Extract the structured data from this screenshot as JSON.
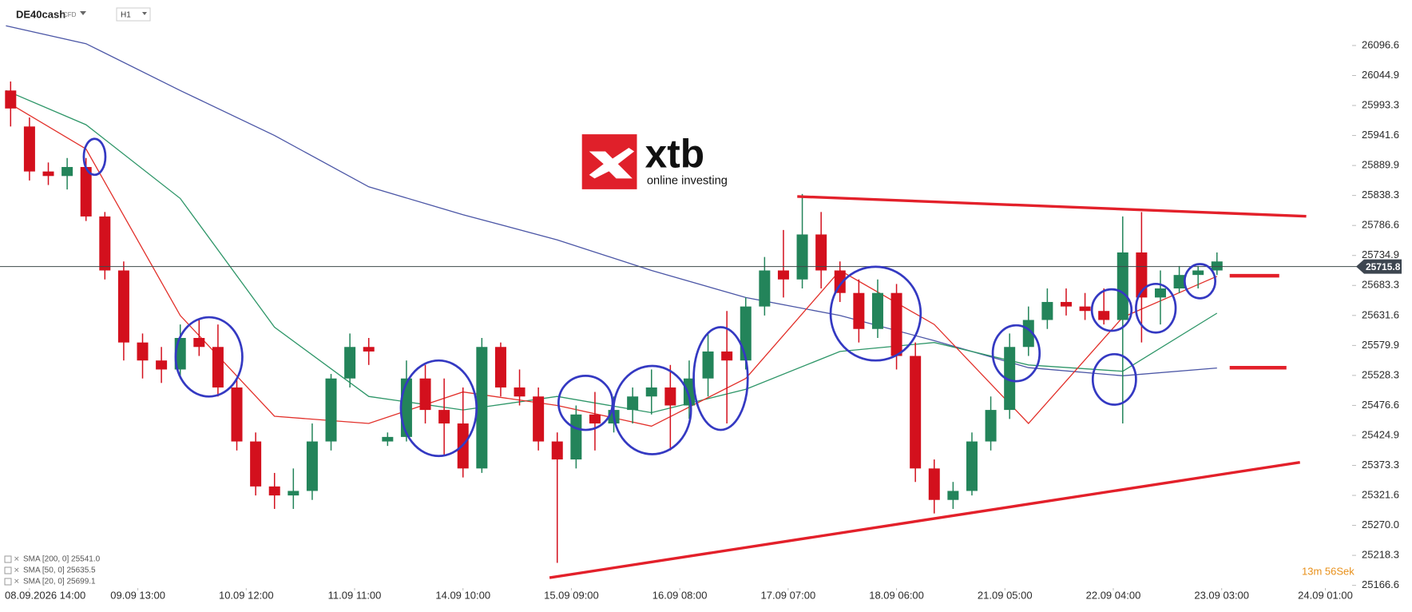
{
  "header": {
    "symbol": "DE40cash",
    "kind": "CFD",
    "timeframe": "H1"
  },
  "watermark": {
    "brand": "xtb",
    "tagline": "online investing"
  },
  "countdown": "13m 56Sek",
  "chart_data": {
    "type": "candlestick",
    "up_color": "#23845a",
    "down_color": "#d3101d",
    "x": [
      4,
      8,
      12,
      16,
      20,
      24,
      28,
      32,
      36,
      40,
      44,
      48,
      52,
      56,
      60,
      64,
      68,
      72,
      76,
      80,
      84,
      88,
      92,
      96,
      100,
      104,
      108,
      112,
      116,
      120,
      124,
      128,
      132,
      136,
      140,
      144,
      148,
      152,
      156,
      160,
      164,
      168,
      172,
      176,
      180,
      184,
      188,
      192,
      196,
      200,
      204,
      208,
      212,
      216,
      220,
      224,
      228,
      232,
      236,
      240,
      244,
      248,
      252,
      256,
      260
    ],
    "open": [
      26019.1,
      25957.1,
      25879.6,
      25871.8,
      25887.3,
      25802.1,
      25709.1,
      25585.0,
      25554.0,
      25538.5,
      25592.8,
      25577.3,
      25507.5,
      25414.5,
      25337.0,
      25321.5,
      25329.3,
      25414.5,
      25523.0,
      25577.3,
      25414.5,
      25422.3,
      25523.0,
      25468.8,
      25445.5,
      25368.0,
      25577.3,
      25507.5,
      25492.0,
      25414.5,
      25383.5,
      25461.0,
      25445.5,
      25468.8,
      25492.0,
      25507.5,
      25476.5,
      25523.0,
      25569.5,
      25554.0,
      25647.0,
      25709.1,
      25693.6,
      25771.1,
      25709.1,
      25670.3,
      25608.3,
      25670.3,
      25561.8,
      25368.0,
      25313.8,
      25329.3,
      25414.5,
      25468.8,
      25577.3,
      25623.8,
      25654.8,
      25647.0,
      25639.3,
      25623.8,
      25740.1,
      25662.5,
      25678.1,
      25701.3,
      25709.1
    ],
    "high": [
      26034.6,
      25972.6,
      25895.1,
      25902.8,
      25902.8,
      25809.8,
      25724.6,
      25600.5,
      25577.3,
      25616.0,
      25623.8,
      25616.0,
      25523.0,
      25430.0,
      25360.3,
      25368.0,
      25445.5,
      25530.8,
      25600.5,
      25592.8,
      25430.0,
      25554.0,
      25546.3,
      25523.0,
      25507.5,
      25592.8,
      25585.0,
      25538.5,
      25507.5,
      25430.0,
      25476.5,
      25499.8,
      25492.0,
      25507.5,
      25538.5,
      25546.3,
      25554.0,
      25600.5,
      25639.3,
      25662.5,
      25732.3,
      25778.8,
      25840.8,
      25809.8,
      25724.6,
      25693.6,
      25693.6,
      25685.8,
      25585.0,
      25383.5,
      25344.8,
      25430.0,
      25492.0,
      25600.5,
      25647.0,
      25678.1,
      25678.1,
      25670.3,
      25678.1,
      25802.1,
      25809.8,
      25709.1,
      25716.8,
      25716.8,
      25740.1
    ],
    "low": [
      25957.1,
      25864.1,
      25856.3,
      25848.6,
      25794.3,
      25693.6,
      25554.0,
      25523.0,
      25515.3,
      25523.0,
      25561.8,
      25492.0,
      25399.0,
      25321.5,
      25298.3,
      25298.3,
      25313.8,
      25399.0,
      25507.5,
      25546.3,
      25406.8,
      25414.5,
      25445.5,
      25391.3,
      25352.5,
      25360.3,
      25492.0,
      25476.5,
      25399.0,
      25205.3,
      25368.0,
      25399.0,
      25430.0,
      25445.5,
      25461.0,
      25399.0,
      25453.3,
      25492.0,
      25445.5,
      25538.5,
      25631.5,
      25662.5,
      25678.1,
      25678.1,
      25654.8,
      25585.0,
      25592.8,
      25538.5,
      25344.8,
      25290.5,
      25298.3,
      25321.5,
      25399.0,
      25453.3,
      25561.8,
      25608.3,
      25631.5,
      25623.8,
      25616.0,
      25445.5,
      25585.0,
      25616.0,
      25670.3,
      25678.1,
      25701.3
    ],
    "close": [
      25988.1,
      25879.6,
      25871.8,
      25887.3,
      25802.1,
      25709.1,
      25585.0,
      25554.0,
      25538.5,
      25592.8,
      25577.3,
      25507.5,
      25414.5,
      25337.0,
      25321.5,
      25329.3,
      25414.5,
      25523.0,
      25577.3,
      25569.5,
      25422.3,
      25523.0,
      25468.8,
      25445.5,
      25368.0,
      25577.3,
      25507.5,
      25492.0,
      25414.5,
      25383.5,
      25461.0,
      25445.5,
      25468.8,
      25492.0,
      25507.5,
      25476.5,
      25523.0,
      25569.5,
      25554.0,
      25647.0,
      25709.1,
      25693.6,
      25771.1,
      25709.1,
      25670.3,
      25608.3,
      25670.3,
      25561.8,
      25368.0,
      25313.8,
      25329.3,
      25414.5,
      25468.8,
      25577.3,
      25623.8,
      25654.8,
      25647.0,
      25639.3,
      25623.8,
      25740.1,
      25662.5,
      25678.1,
      25701.3,
      25709.1,
      25724.6
    ],
    "overlays": [
      {
        "name": "SMA [200, 0] 25541.0",
        "color": "#4b56a6",
        "x": [
          3,
          20,
          40,
          60,
          80,
          100,
          120,
          140,
          160,
          180,
          200,
          220,
          240,
          260
        ],
        "values": [
          26130.7,
          26099.7,
          26019.1,
          25941.6,
          25853.2,
          25805.2,
          25761.8,
          25709.1,
          25662.5,
          25631.5,
          25588.1,
          25541.6,
          25527.7,
          25541.0
        ]
      },
      {
        "name": "SMA [50, 0] 25635.5",
        "color": "#2e9668",
        "x": [
          3,
          20,
          40,
          60,
          80,
          100,
          120,
          140,
          160,
          180,
          200,
          220,
          240,
          260
        ],
        "values": [
          26019.1,
          25960.2,
          25833.1,
          25611.4,
          25492.0,
          25468.8,
          25492.0,
          25464.1,
          25504.4,
          25569.5,
          25585.0,
          25546.3,
          25535.4,
          25635.5
        ]
      },
      {
        "name": "SMA [20, 0] 25699.1",
        "color": "#e2302a",
        "x": [
          3,
          20,
          40,
          60,
          80,
          100,
          120,
          140,
          160,
          180,
          200,
          220,
          240,
          260
        ],
        "values": [
          26000.5,
          25918.3,
          25631.5,
          25457.9,
          25445.5,
          25499.8,
          25476.5,
          25440.9,
          25523.0,
          25709.1,
          25616.0,
          25445.5,
          25628.4,
          25699.1
        ]
      }
    ],
    "last_price": 25715.8,
    "xlim": [
      2,
      288
    ],
    "xticks": [
      {
        "value": 8,
        "label": "08.09.2026 14:00"
      },
      {
        "value": 31,
        "label": "09.09 13:00"
      },
      {
        "value": 54,
        "label": "10.09 12:00"
      },
      {
        "value": 77,
        "label": "11.09 11:00"
      },
      {
        "value": 100,
        "label": "14.09 10:00"
      },
      {
        "value": 123,
        "label": "15.09 09:00"
      },
      {
        "value": 146,
        "label": "16.09 08:00"
      },
      {
        "value": 169,
        "label": "17.09 07:00"
      },
      {
        "value": 192,
        "label": "18.09 06:00"
      },
      {
        "value": 215,
        "label": "21.09 05:00"
      },
      {
        "value": 238,
        "label": "22.09 04:00"
      },
      {
        "value": 261,
        "label": "23.09 03:00"
      },
      {
        "value": 283,
        "label": "24.09 01:00"
      }
    ],
    "ylim": [
      25151,
      26175
    ],
    "yticks": [
      26096.6,
      26044.9,
      25993.3,
      25941.6,
      25889.9,
      25838.3,
      25786.6,
      25734.9,
      25683.3,
      25631.6,
      25579.9,
      25528.3,
      25476.6,
      25424.9,
      25373.3,
      25321.6,
      {
        "value": 25270,
        "label": "25270.0"
      },
      25218.3,
      25166.6
    ]
  }
}
